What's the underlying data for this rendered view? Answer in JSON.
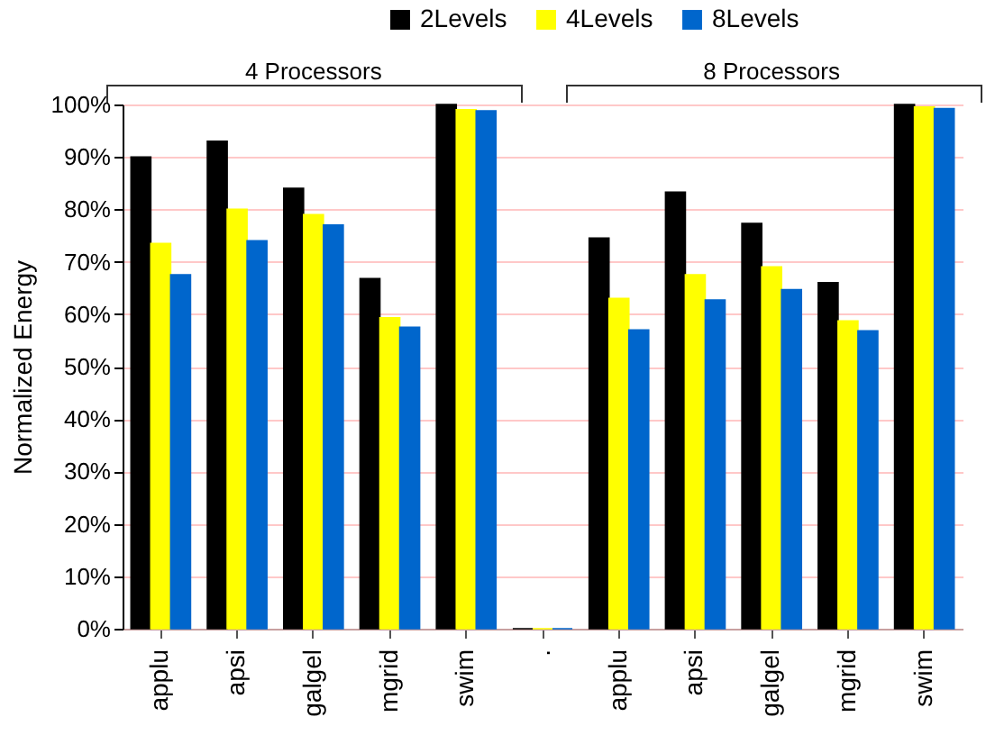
{
  "chart_data": {
    "type": "bar",
    "ylabel": "Normalized Energy",
    "categories": [
      "applu",
      "apsi",
      "galgel",
      "mgrid",
      "swim",
      ".",
      "applu",
      "apsi",
      "galgel",
      "mgrid",
      "swim"
    ],
    "series": [
      {
        "name": "2Levels",
        "color": "#000000",
        "values": [
          90,
          93,
          84,
          66.8,
          100,
          0,
          74.5,
          83.3,
          77.3,
          66,
          100
        ]
      },
      {
        "name": "4Levels",
        "color": "#ffff00",
        "values": [
          73.5,
          80,
          79,
          59.3,
          99,
          0,
          63,
          67.5,
          69,
          58.7,
          99.5
        ]
      },
      {
        "name": "8Levels",
        "color": "#0066cc",
        "values": [
          67.5,
          74,
          77,
          57.5,
          98.8,
          0,
          57,
          62.7,
          64.7,
          56.8,
          99.2
        ]
      }
    ],
    "ylim": [
      0,
      100
    ],
    "yticks": [
      {
        "value": 0,
        "label": "0%"
      },
      {
        "value": 10,
        "label": "10%"
      },
      {
        "value": 20,
        "label": "20%"
      },
      {
        "value": 30,
        "label": "30%"
      },
      {
        "value": 40,
        "label": "40%"
      },
      {
        "value": 50,
        "label": "50%"
      },
      {
        "value": 60,
        "label": "60%"
      },
      {
        "value": 70,
        "label": "70%"
      },
      {
        "value": 80,
        "label": "80%"
      },
      {
        "value": 90,
        "label": "90%"
      },
      {
        "value": 100,
        "label": "100%"
      }
    ],
    "grid": "y",
    "legend": "top",
    "annotations": [
      "4 Processors",
      "8 Processors"
    ]
  }
}
